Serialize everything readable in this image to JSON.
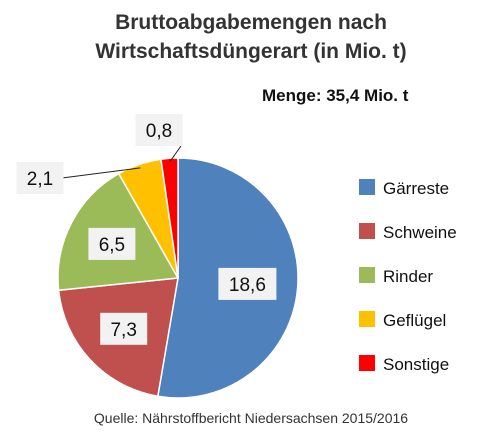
{
  "chart_data": {
    "type": "pie",
    "title_lines": [
      "Bruttoabgabemengen nach",
      "Wirtschaftsdüngerart (in Mio. t)"
    ],
    "subtitle": "Menge: 35,4 Mio. t",
    "source": "Quelle: Nährstoffbericht Niedersachsen 2015/2016",
    "decimal_separator": ",",
    "slices": [
      {
        "label": "Gärreste",
        "value": 18.6,
        "value_label": "18,6",
        "color": "#4F81BD"
      },
      {
        "label": "Schweine",
        "value": 7.3,
        "value_label": "7,3",
        "color": "#C0504D"
      },
      {
        "label": "Rinder",
        "value": 6.5,
        "value_label": "6,5",
        "color": "#9BBB59"
      },
      {
        "label": "Geflügel",
        "value": 2.1,
        "value_label": "2,1",
        "color": "#FFC000"
      },
      {
        "label": "Sonstige",
        "value": 0.8,
        "value_label": "0,8",
        "color": "#FF0000"
      }
    ],
    "legend": {
      "position": "right"
    }
  }
}
